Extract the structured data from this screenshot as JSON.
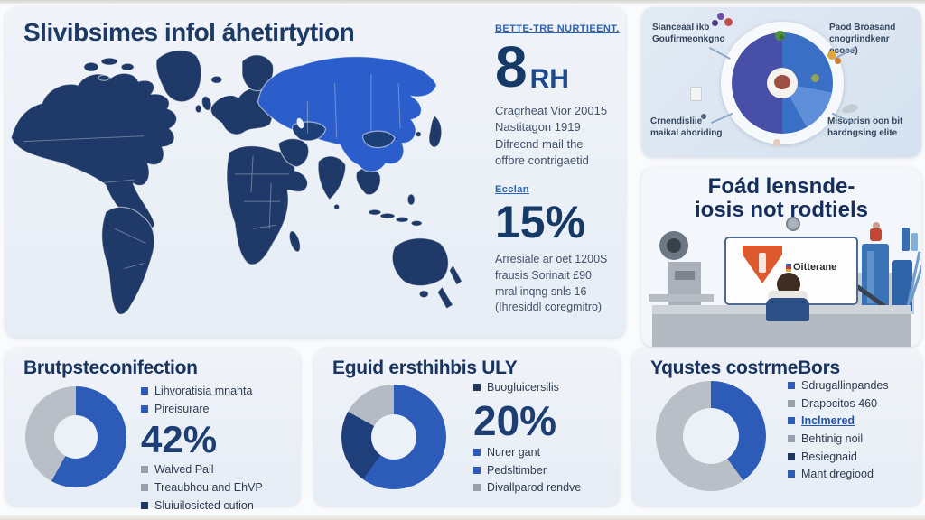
{
  "palette": {
    "blue": "#2d5cb8",
    "navy": "#1c3a64",
    "map-dark": "#1f3a68",
    "map-hi": "#2b5ecb",
    "marker_blue": "#2d5cb8",
    "marker_gray": "#98a0ab",
    "marker_navy": "#20365c",
    "donut_blue": "#2d5cb8",
    "donut_navy": "#1e3f7a",
    "donut_gray": "#b9bfc7"
  },
  "header": {
    "title": "Slivibsimes infol áhetirtytion"
  },
  "stats": [
    {
      "header": "BETTE-TRE NURTIEENT.",
      "value": "8",
      "unit": "RH",
      "lines": [
        "Cragrheat Vior 20015",
        "Nastitagon 1919",
        "Difrecnd mail the",
        "offbre contrigaetid"
      ]
    },
    {
      "header": "Ecclan",
      "value": "15%",
      "unit": "",
      "lines": [
        "Arresiale ar oet 1200S",
        "frausis Sorinait £90",
        "mral inqng snls 16",
        "(Ihresiddl coregmitro)"
      ]
    }
  ],
  "plate": {
    "labels": [
      {
        "line1": "Sianceaal ikb",
        "line2": "Goufirmeonkgno"
      },
      {
        "line1": "Paod Broasand",
        "line2": "cnogrlindkenr ecoee)"
      },
      {
        "line1": "Crnendisliie",
        "line2": "maikal ahoriding"
      },
      {
        "line1": "Misoprisn oon bit",
        "line2": "hardngsing elite"
      }
    ]
  },
  "factory": {
    "title1": "Foád lensnde-",
    "title2": "iosis not rodtiels",
    "monitor_label": "Oitterane"
  },
  "cards": [
    {
      "title": "Brutpsteconifection",
      "stat": "42%",
      "donut": [
        {
          "color": "#2d5cb8",
          "pct": 58
        },
        {
          "color": "#b9bfc7",
          "pct": 42
        }
      ],
      "items": [
        {
          "type": "bullet",
          "marker": "blue",
          "text": "Lihvoratisia mnahta"
        },
        {
          "type": "bullet",
          "marker": "blue",
          "text": "Pireisurare"
        },
        {
          "type": "stat"
        },
        {
          "type": "bullet",
          "marker": "gray",
          "text": "Walved Pail"
        },
        {
          "type": "bullet",
          "marker": "gray",
          "text": "Treaubhou and EhVP"
        },
        {
          "type": "bullet",
          "marker": "navy",
          "text": "Sluiuilosicted cution"
        }
      ]
    },
    {
      "title": "Eguid ersthihbis ULY",
      "stat": "20%",
      "donut": [
        {
          "color": "#2d5cb8",
          "pct": 60
        },
        {
          "color": "#1e3f7a",
          "pct": 23
        },
        {
          "color": "#b5bbc4",
          "pct": 17
        }
      ],
      "items": [
        {
          "type": "bullet",
          "marker": "navy",
          "text": "Buogluicersilis"
        },
        {
          "type": "stat"
        },
        {
          "type": "bullet",
          "marker": "blue",
          "text": "Nurer gant"
        },
        {
          "type": "bullet",
          "marker": "blue",
          "text": "Pedsltimber"
        },
        {
          "type": "bullet",
          "marker": "gray",
          "text": "Divallparod rendve"
        }
      ]
    },
    {
      "title": "Yqustes costrmeBors",
      "stat": "",
      "donut": [
        {
          "color": "#2d5cb8",
          "pct": 40
        },
        {
          "color": "#b9bfc7",
          "pct": 60
        }
      ],
      "items": [
        {
          "type": "bullet",
          "marker": "blue",
          "text": "Sdrugallinpandes"
        },
        {
          "type": "bullet",
          "marker": "gray",
          "text": "Drapocitos 460"
        },
        {
          "type": "bullet",
          "marker": "blue",
          "emphasis": true,
          "text": "Inclmered"
        },
        {
          "type": "bullet",
          "marker": "gray",
          "text": "Behtinig noil"
        },
        {
          "type": "bullet",
          "marker": "navy",
          "text": "Besiegnaid"
        },
        {
          "type": "bullet",
          "marker": "blue",
          "text": "Mant dregiood"
        }
      ]
    }
  ],
  "chart_data": [
    {
      "type": "pie",
      "title": "Brutpsteconifection",
      "labels": [
        "blue segment",
        "gray segment"
      ],
      "values": [
        58,
        42
      ],
      "colors": [
        "#2d5cb8",
        "#b9bfc7"
      ],
      "annotation": "42%",
      "donut": true
    },
    {
      "type": "pie",
      "title": "Eguid ersthihbis ULY",
      "labels": [
        "blue segment",
        "dark navy segment",
        "gray segment"
      ],
      "values": [
        60,
        23,
        17
      ],
      "colors": [
        "#2d5cb8",
        "#1e3f7a",
        "#b5bbc4"
      ],
      "annotation": "20%",
      "donut": true
    },
    {
      "type": "pie",
      "title": "Yqustes costrmeBors",
      "labels": [
        "blue segment",
        "gray segment"
      ],
      "values": [
        40,
        60
      ],
      "colors": [
        "#2d5cb8",
        "#b9bfc7"
      ],
      "donut": true
    },
    {
      "type": "pie",
      "title": "plate diagram (top-right panel)",
      "labels": [
        "purple-blue half",
        "blue half"
      ],
      "values": [
        50,
        50
      ],
      "colors": [
        "#474fa8",
        "#3a6fc6"
      ],
      "donut": true
    },
    {
      "type": "stat",
      "label": "BETTE-TRE NURTIEENT.",
      "value": "8 RH"
    },
    {
      "type": "stat",
      "label": "Ecclan",
      "value": "15%"
    }
  ]
}
